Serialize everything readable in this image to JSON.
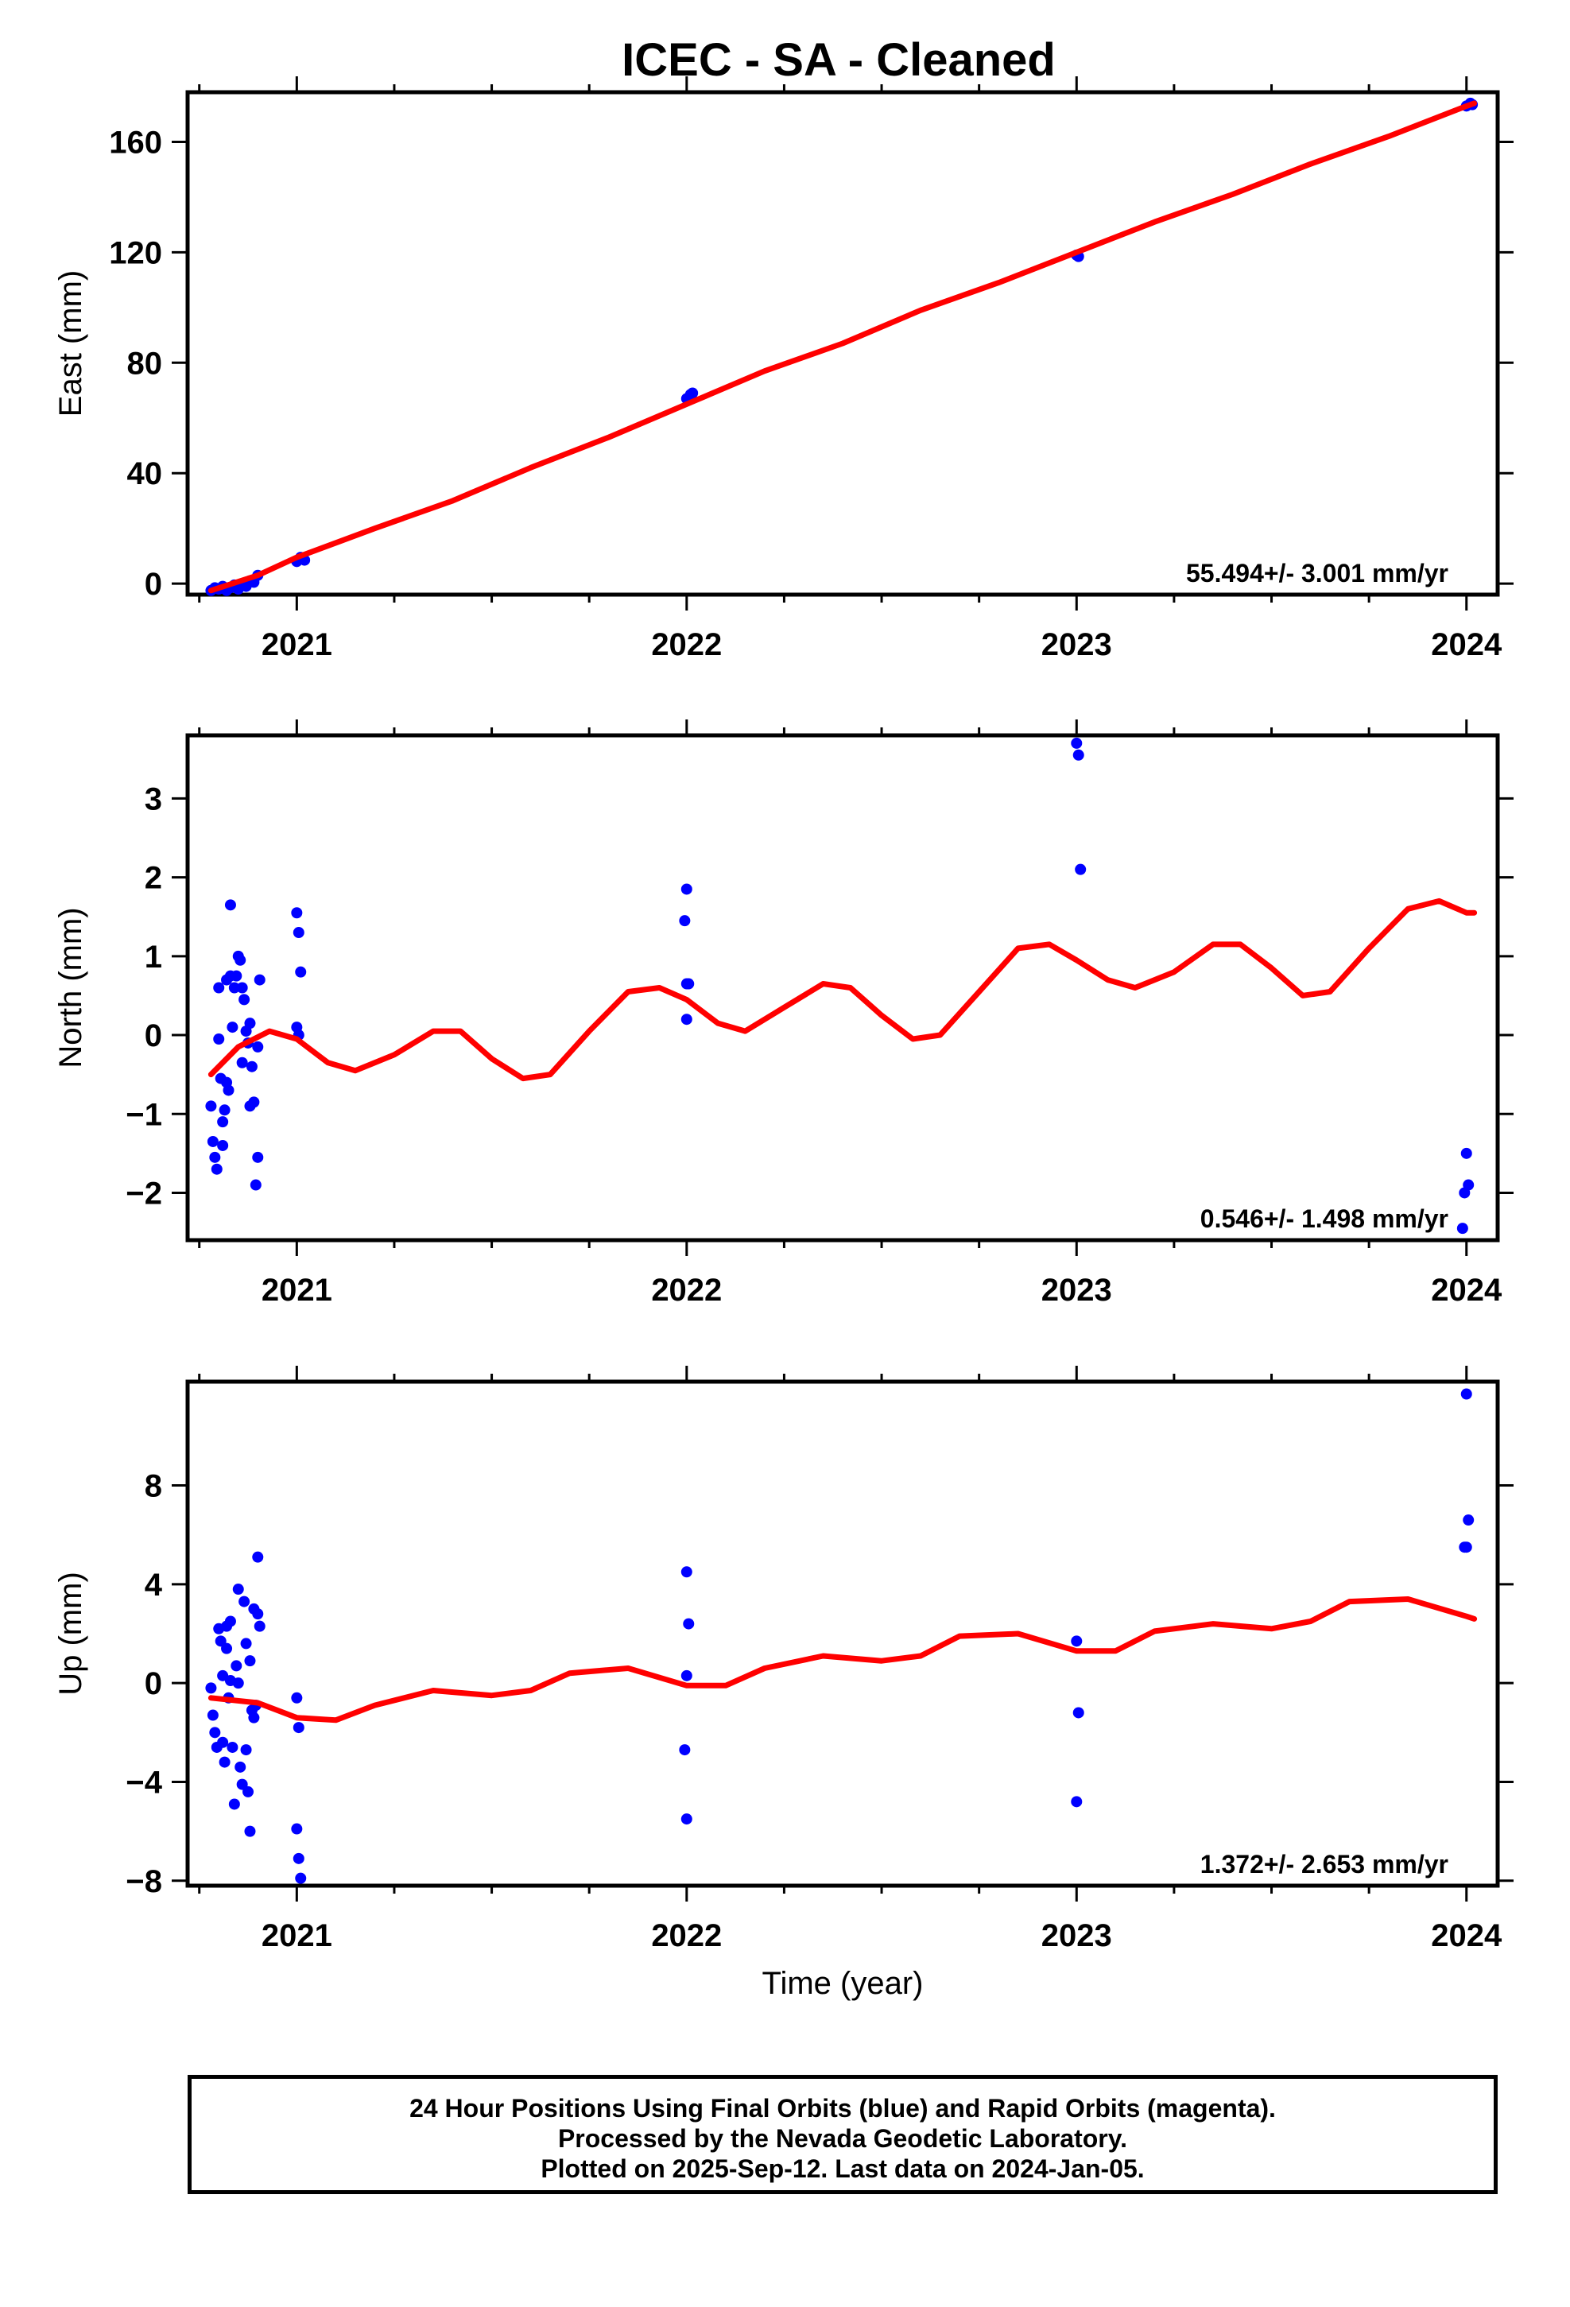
{
  "title": "ICEC  - SA - Cleaned",
  "footer": {
    "lines": [
      "24 Hour Positions Using Final Orbits (blue) and Rapid Orbits (magenta).",
      "Processed by the Nevada Geodetic Laboratory.",
      "Plotted on 2025-Sep-12. Last data on 2024-Jan-05."
    ]
  },
  "colors": {
    "points": "#0000ff",
    "fit": "#ff0000",
    "axes": "#000000"
  },
  "chart_data": [
    {
      "type": "scatter",
      "ylabel": "East (mm)",
      "xlabel": "",
      "rate_label": "55.494+/- 3.001 mm/yr",
      "xlim": [
        2020.72,
        2024.08
      ],
      "ylim": [
        -4,
        178
      ],
      "yticks": [
        0,
        40,
        80,
        120,
        160
      ],
      "ytick_labels": [
        "0",
        "40",
        "80",
        "120",
        "160"
      ],
      "xticks": [
        2021,
        2022,
        2023,
        2024
      ],
      "xtick_labels": [
        "2021",
        "2022",
        "2023",
        "2024"
      ],
      "points": [
        [
          2020.78,
          -2.5
        ],
        [
          2020.79,
          -1.5
        ],
        [
          2020.8,
          -2.0
        ],
        [
          2020.81,
          -1.0
        ],
        [
          2020.82,
          -2.5
        ],
        [
          2020.83,
          -1.5
        ],
        [
          2020.84,
          -0.5
        ],
        [
          2020.85,
          -2.0
        ],
        [
          2020.86,
          0.0
        ],
        [
          2020.87,
          -1.0
        ],
        [
          2020.88,
          1.0
        ],
        [
          2020.89,
          0.5
        ],
        [
          2020.9,
          3.0
        ],
        [
          2021.0,
          8.0
        ],
        [
          2021.01,
          9.5
        ],
        [
          2021.02,
          8.5
        ],
        [
          2022.0,
          67.0
        ],
        [
          2022.01,
          68.5
        ],
        [
          2022.015,
          69.0
        ],
        [
          2023.0,
          119.0
        ],
        [
          2023.005,
          118.5
        ],
        [
          2024.0,
          173.0
        ],
        [
          2024.01,
          174.0
        ],
        [
          2024.015,
          173.5
        ]
      ],
      "fit": {
        "x": [
          2020.78,
          2020.9,
          2021.0,
          2021.2,
          2021.4,
          2021.6,
          2021.8,
          2022.0,
          2022.2,
          2022.4,
          2022.6,
          2022.8,
          2023.0,
          2023.2,
          2023.4,
          2023.6,
          2023.8,
          2024.0,
          2024.02
        ],
        "y": [
          -2.5,
          3.0,
          9.5,
          20.0,
          30.0,
          42.0,
          53.0,
          65.0,
          77.0,
          87.0,
          99.0,
          109.0,
          120.0,
          131.0,
          141.0,
          152.0,
          162.0,
          173.0,
          174.0
        ]
      }
    },
    {
      "type": "scatter",
      "ylabel": "North (mm)",
      "xlabel": "",
      "rate_label": "0.546+/- 1.498 mm/yr",
      "xlim": [
        2020.72,
        2024.08
      ],
      "ylim": [
        -2.6,
        3.8
      ],
      "yticks": [
        -2,
        -1,
        0,
        1,
        2,
        3
      ],
      "ytick_labels": [
        "−2",
        "−1",
        "0",
        "1",
        "2",
        "3"
      ],
      "xticks": [
        2021,
        2022,
        2023,
        2024
      ],
      "xtick_labels": [
        "2021",
        "2022",
        "2023",
        "2024"
      ],
      "points": [
        [
          2020.78,
          -0.9
        ],
        [
          2020.785,
          -1.35
        ],
        [
          2020.79,
          -1.55
        ],
        [
          2020.795,
          -1.7
        ],
        [
          2020.8,
          0.6
        ],
        [
          2020.8,
          -0.05
        ],
        [
          2020.805,
          -0.55
        ],
        [
          2020.81,
          -1.4
        ],
        [
          2020.81,
          -1.1
        ],
        [
          2020.815,
          -0.95
        ],
        [
          2020.82,
          0.7
        ],
        [
          2020.82,
          -0.6
        ],
        [
          2020.825,
          -0.7
        ],
        [
          2020.83,
          1.65
        ],
        [
          2020.83,
          0.75
        ],
        [
          2020.835,
          0.1
        ],
        [
          2020.84,
          0.6
        ],
        [
          2020.845,
          0.75
        ],
        [
          2020.85,
          1.0
        ],
        [
          2020.855,
          0.95
        ],
        [
          2020.86,
          0.6
        ],
        [
          2020.86,
          -0.35
        ],
        [
          2020.865,
          0.45
        ],
        [
          2020.87,
          0.05
        ],
        [
          2020.875,
          -0.1
        ],
        [
          2020.88,
          0.15
        ],
        [
          2020.88,
          -0.9
        ],
        [
          2020.885,
          -0.4
        ],
        [
          2020.89,
          -0.85
        ],
        [
          2020.895,
          -1.9
        ],
        [
          2020.9,
          -1.55
        ],
        [
          2020.9,
          -0.15
        ],
        [
          2020.905,
          0.7
        ],
        [
          2021.0,
          1.55
        ],
        [
          2021.005,
          1.3
        ],
        [
          2021.01,
          0.8
        ],
        [
          2021.0,
          0.1
        ],
        [
          2021.005,
          0.0
        ],
        [
          2022.0,
          1.85
        ],
        [
          2021.995,
          1.45
        ],
        [
          2022.0,
          0.65
        ],
        [
          2022.005,
          0.65
        ],
        [
          2022.0,
          0.2
        ],
        [
          2023.0,
          3.7
        ],
        [
          2023.005,
          3.55
        ],
        [
          2023.01,
          2.1
        ],
        [
          2024.0,
          -1.5
        ],
        [
          2024.005,
          -1.9
        ],
        [
          2023.995,
          -2.0
        ],
        [
          2023.99,
          -2.45
        ]
      ],
      "fit": {
        "x": [
          2020.78,
          2020.85,
          2020.93,
          2021.0,
          2021.08,
          2021.15,
          2021.25,
          2021.35,
          2021.42,
          2021.5,
          2021.58,
          2021.65,
          2021.75,
          2021.85,
          2021.93,
          2022.0,
          2022.08,
          2022.15,
          2022.25,
          2022.35,
          2022.42,
          2022.5,
          2022.58,
          2022.65,
          2022.75,
          2022.85,
          2022.93,
          2023.0,
          2023.08,
          2023.15,
          2023.25,
          2023.35,
          2023.42,
          2023.5,
          2023.58,
          2023.65,
          2023.75,
          2023.85,
          2023.93,
          2024.0,
          2024.02
        ],
        "y": [
          -0.5,
          -0.15,
          0.05,
          -0.05,
          -0.35,
          -0.45,
          -0.25,
          0.05,
          0.05,
          -0.3,
          -0.55,
          -0.5,
          0.05,
          0.55,
          0.6,
          0.45,
          0.15,
          0.05,
          0.35,
          0.65,
          0.6,
          0.25,
          -0.05,
          0.0,
          0.55,
          1.1,
          1.15,
          0.95,
          0.7,
          0.6,
          0.8,
          1.15,
          1.15,
          0.85,
          0.5,
          0.55,
          1.1,
          1.6,
          1.7,
          1.55,
          1.55
        ]
      }
    },
    {
      "type": "scatter",
      "ylabel": "Up (mm)",
      "xlabel": "Time (year)",
      "rate_label": "1.372+/- 2.653 mm/yr",
      "xlim": [
        2020.72,
        2024.08
      ],
      "ylim": [
        -8.2,
        12.2
      ],
      "yticks": [
        -8,
        -4,
        0,
        4,
        8
      ],
      "ytick_labels": [
        "−8",
        "−4",
        "0",
        "4",
        "8"
      ],
      "xticks": [
        2021,
        2022,
        2023,
        2024
      ],
      "xtick_labels": [
        "2021",
        "2022",
        "2023",
        "2024"
      ],
      "points": [
        [
          2020.78,
          -0.2
        ],
        [
          2020.785,
          -1.3
        ],
        [
          2020.79,
          -2.0
        ],
        [
          2020.795,
          -2.6
        ],
        [
          2020.8,
          2.2
        ],
        [
          2020.805,
          1.7
        ],
        [
          2020.81,
          0.3
        ],
        [
          2020.81,
          -2.4
        ],
        [
          2020.815,
          -3.2
        ],
        [
          2020.82,
          2.3
        ],
        [
          2020.82,
          1.4
        ],
        [
          2020.825,
          -0.6
        ],
        [
          2020.83,
          2.5
        ],
        [
          2020.83,
          0.1
        ],
        [
          2020.835,
          -2.6
        ],
        [
          2020.84,
          -4.9
        ],
        [
          2020.845,
          0.7
        ],
        [
          2020.85,
          3.8
        ],
        [
          2020.85,
          0.0
        ],
        [
          2020.855,
          -3.4
        ],
        [
          2020.86,
          -4.1
        ],
        [
          2020.865,
          3.3
        ],
        [
          2020.87,
          1.6
        ],
        [
          2020.87,
          -2.7
        ],
        [
          2020.875,
          -4.4
        ],
        [
          2020.88,
          -6.0
        ],
        [
          2020.88,
          0.9
        ],
        [
          2020.885,
          -1.1
        ],
        [
          2020.89,
          -1.4
        ],
        [
          2020.89,
          3.0
        ],
        [
          2020.895,
          -0.9
        ],
        [
          2020.9,
          2.8
        ],
        [
          2020.9,
          5.1
        ],
        [
          2020.905,
          2.3
        ],
        [
          2021.0,
          -0.6
        ],
        [
          2021.005,
          -1.8
        ],
        [
          2021.0,
          -5.9
        ],
        [
          2021.005,
          -7.1
        ],
        [
          2021.01,
          -7.9
        ],
        [
          2022.0,
          4.5
        ],
        [
          2022.005,
          2.4
        ],
        [
          2022.0,
          0.3
        ],
        [
          2021.995,
          -2.7
        ],
        [
          2022.0,
          -5.5
        ],
        [
          2023.0,
          1.7
        ],
        [
          2023.005,
          -1.2
        ],
        [
          2023.0,
          -4.8
        ],
        [
          2024.0,
          11.7
        ],
        [
          2024.005,
          6.6
        ],
        [
          2023.995,
          5.5
        ],
        [
          2024.0,
          5.5
        ]
      ],
      "fit": {
        "x": [
          2020.78,
          2020.9,
          2021.0,
          2021.1,
          2021.2,
          2021.35,
          2021.5,
          2021.6,
          2021.7,
          2021.85,
          2022.0,
          2022.1,
          2022.2,
          2022.35,
          2022.5,
          2022.6,
          2022.7,
          2022.85,
          2023.0,
          2023.1,
          2023.2,
          2023.35,
          2023.5,
          2023.6,
          2023.7,
          2023.85,
          2024.0,
          2024.02
        ],
        "y": [
          -0.6,
          -0.8,
          -1.4,
          -1.5,
          -0.9,
          -0.3,
          -0.5,
          -0.3,
          0.4,
          0.6,
          -0.1,
          -0.1,
          0.6,
          1.1,
          0.9,
          1.1,
          1.9,
          2.0,
          1.3,
          1.3,
          2.1,
          2.4,
          2.2,
          2.5,
          3.3,
          3.4,
          2.7,
          2.6
        ]
      }
    }
  ]
}
